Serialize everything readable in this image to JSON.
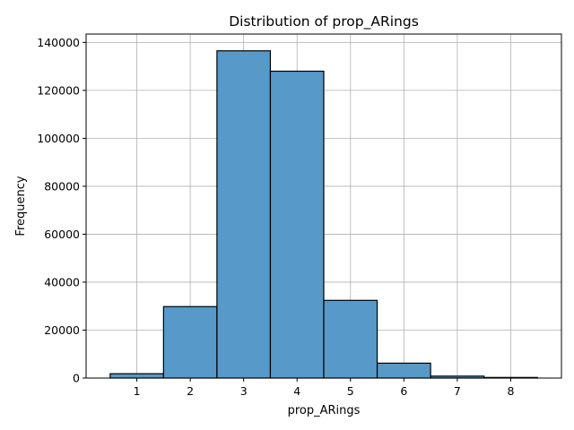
{
  "chart_data": {
    "type": "bar",
    "title": "Distribution of prop_ARings",
    "xlabel": "prop_ARings",
    "ylabel": "Frequency",
    "categories": [
      "1",
      "2",
      "3",
      "4",
      "5",
      "6",
      "7",
      "8"
    ],
    "x": [
      1,
      2,
      3,
      4,
      5,
      6,
      7,
      8
    ],
    "values": [
      1800,
      29800,
      136500,
      128000,
      32400,
      6200,
      800,
      250
    ],
    "xlim": [
      0.05,
      8.95
    ],
    "ylim": [
      0,
      143500
    ],
    "yticks": [
      0,
      20000,
      40000,
      60000,
      80000,
      100000,
      120000,
      140000
    ],
    "ytick_labels": [
      "0",
      "20000",
      "40000",
      "60000",
      "80000",
      "100000",
      "120000",
      "140000"
    ],
    "grid": true,
    "legend": "none",
    "bar_color": "#5799c8",
    "edge_color": "#000000",
    "grid_color": "#b0b0b0"
  }
}
